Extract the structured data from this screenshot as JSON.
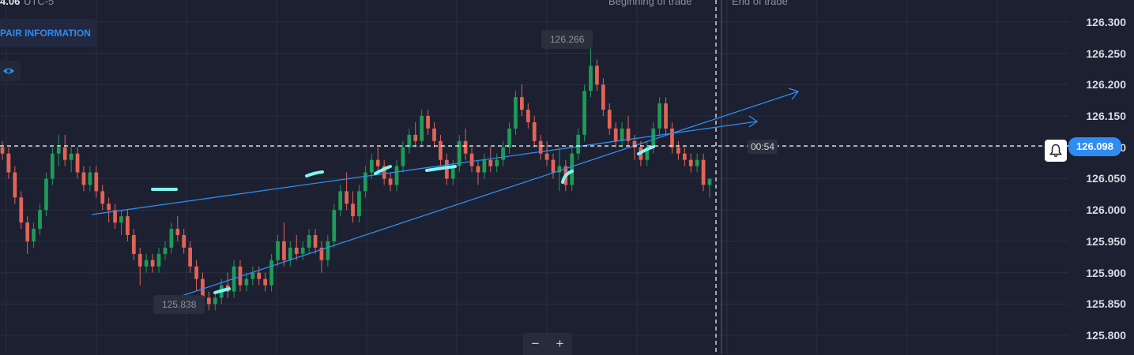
{
  "header": {
    "clock_text": "4.06",
    "timezone": "UTC-5",
    "pair_info_label": "PAIR INFORMATION",
    "eye_icon": "eye-icon",
    "beginning_label": "Beginning of trade",
    "end_label": "End of trade"
  },
  "annotations": {
    "high_label": "126.266",
    "low_label": "125.838",
    "timer_label": "00:54",
    "current_price": "126.098",
    "bell_icon": "bell-icon"
  },
  "zoom": {
    "minus": "−",
    "plus": "+"
  },
  "colors": {
    "background": "#1c2030",
    "grid": "#2a2f40",
    "bull": "#1e9b57",
    "bear": "#e26357",
    "trendline": "#2f8cf0",
    "marker": "#7ff6f0",
    "accent": "#2f8cf0"
  },
  "chart_data": {
    "type": "candlestick",
    "y_axis_ticks": [
      "126.300",
      "126.250",
      "126.200",
      "126.150",
      "126.100",
      "126.050",
      "126.000",
      "125.950",
      "125.900",
      "125.850",
      "125.800"
    ],
    "ylim": [
      125.77,
      126.335
    ],
    "current_price": 126.098,
    "high": 126.266,
    "low": 125.838,
    "candles": [
      [
        126.1,
        126.11,
        126.08,
        126.09
      ],
      [
        126.09,
        126.1,
        126.05,
        126.06
      ],
      [
        126.06,
        126.07,
        126.01,
        126.02
      ],
      [
        126.02,
        126.03,
        125.97,
        125.98
      ],
      [
        125.98,
        125.99,
        125.93,
        125.95
      ],
      [
        125.95,
        125.98,
        125.94,
        125.97
      ],
      [
        125.97,
        126.01,
        125.96,
        126.0
      ],
      [
        126.0,
        126.06,
        125.99,
        126.05
      ],
      [
        126.05,
        126.1,
        126.04,
        126.09
      ],
      [
        126.09,
        126.12,
        126.07,
        126.1
      ],
      [
        126.1,
        126.12,
        126.07,
        126.08
      ],
      [
        126.08,
        126.1,
        126.06,
        126.09
      ],
      [
        126.09,
        126.1,
        126.05,
        126.06
      ],
      [
        126.06,
        126.07,
        126.03,
        126.04
      ],
      [
        126.04,
        126.07,
        126.03,
        126.06
      ],
      [
        126.06,
        126.07,
        126.02,
        126.03
      ],
      [
        126.03,
        126.04,
        126.0,
        126.01
      ],
      [
        126.01,
        126.02,
        125.98,
        126.0
      ],
      [
        126.0,
        126.01,
        125.97,
        125.98
      ],
      [
        125.98,
        126.0,
        125.96,
        125.99
      ],
      [
        125.99,
        126.0,
        125.95,
        125.96
      ],
      [
        125.96,
        125.97,
        125.92,
        125.93
      ],
      [
        125.93,
        125.94,
        125.88,
        125.91
      ],
      [
        125.91,
        125.93,
        125.9,
        125.92
      ],
      [
        125.92,
        125.93,
        125.9,
        125.91
      ],
      [
        125.91,
        125.94,
        125.9,
        125.93
      ],
      [
        125.93,
        125.95,
        125.92,
        125.94
      ],
      [
        125.94,
        125.98,
        125.93,
        125.97
      ],
      [
        125.97,
        125.99,
        125.95,
        125.96
      ],
      [
        125.96,
        125.97,
        125.93,
        125.94
      ],
      [
        125.94,
        125.95,
        125.9,
        125.91
      ],
      [
        125.91,
        125.92,
        125.87,
        125.89
      ],
      [
        125.89,
        125.9,
        125.85,
        125.86
      ],
      [
        125.86,
        125.87,
        125.84,
        125.85
      ],
      [
        125.85,
        125.87,
        125.84,
        125.86
      ],
      [
        125.86,
        125.89,
        125.85,
        125.88
      ],
      [
        125.88,
        125.9,
        125.86,
        125.87
      ],
      [
        125.87,
        125.92,
        125.86,
        125.91
      ],
      [
        125.91,
        125.92,
        125.87,
        125.88
      ],
      [
        125.88,
        125.9,
        125.87,
        125.89
      ],
      [
        125.89,
        125.91,
        125.88,
        125.9
      ],
      [
        125.9,
        125.91,
        125.88,
        125.89
      ],
      [
        125.89,
        125.9,
        125.87,
        125.88
      ],
      [
        125.88,
        125.93,
        125.87,
        125.92
      ],
      [
        125.92,
        125.96,
        125.91,
        125.95
      ],
      [
        125.95,
        125.98,
        125.91,
        125.92
      ],
      [
        125.92,
        125.95,
        125.91,
        125.94
      ],
      [
        125.94,
        125.96,
        125.92,
        125.93
      ],
      [
        125.93,
        125.95,
        125.92,
        125.94
      ],
      [
        125.94,
        125.97,
        125.93,
        125.96
      ],
      [
        125.96,
        125.97,
        125.93,
        125.94
      ],
      [
        125.94,
        125.95,
        125.9,
        125.92
      ],
      [
        125.92,
        125.96,
        125.91,
        125.95
      ],
      [
        125.95,
        126.01,
        125.94,
        126.0
      ],
      [
        126.0,
        126.04,
        125.99,
        126.03
      ],
      [
        126.03,
        126.06,
        126.0,
        126.01
      ],
      [
        126.01,
        126.03,
        125.98,
        125.99
      ],
      [
        125.99,
        126.04,
        125.98,
        126.03
      ],
      [
        126.03,
        126.07,
        126.02,
        126.06
      ],
      [
        126.06,
        126.09,
        126.05,
        126.08
      ],
      [
        126.08,
        126.1,
        126.06,
        126.07
      ],
      [
        126.07,
        126.08,
        126.04,
        126.05
      ],
      [
        126.05,
        126.06,
        126.03,
        126.04
      ],
      [
        126.04,
        126.08,
        126.03,
        126.07
      ],
      [
        126.07,
        126.11,
        126.06,
        126.1
      ],
      [
        126.1,
        126.13,
        126.09,
        126.12
      ],
      [
        126.12,
        126.14,
        126.1,
        126.11
      ],
      [
        126.11,
        126.16,
        126.1,
        126.15
      ],
      [
        126.15,
        126.16,
        126.12,
        126.13
      ],
      [
        126.13,
        126.14,
        126.1,
        126.11
      ],
      [
        126.11,
        126.12,
        126.07,
        126.08
      ],
      [
        126.08,
        126.09,
        126.04,
        126.05
      ],
      [
        126.05,
        126.08,
        126.04,
        126.07
      ],
      [
        126.07,
        126.12,
        126.06,
        126.11
      ],
      [
        126.11,
        126.13,
        126.08,
        126.09
      ],
      [
        126.09,
        126.1,
        126.06,
        126.07
      ],
      [
        126.07,
        126.08,
        126.04,
        126.06
      ],
      [
        126.06,
        126.09,
        126.05,
        126.08
      ],
      [
        126.08,
        126.1,
        126.06,
        126.07
      ],
      [
        126.07,
        126.09,
        126.06,
        126.08
      ],
      [
        126.08,
        126.11,
        126.07,
        126.1
      ],
      [
        126.1,
        126.14,
        126.09,
        126.13
      ],
      [
        126.13,
        126.19,
        126.12,
        126.18
      ],
      [
        126.18,
        126.2,
        126.15,
        126.16
      ],
      [
        126.16,
        126.17,
        126.13,
        126.14
      ],
      [
        126.14,
        126.15,
        126.1,
        126.11
      ],
      [
        126.11,
        126.12,
        126.08,
        126.09
      ],
      [
        126.09,
        126.11,
        126.07,
        126.08
      ],
      [
        126.08,
        126.09,
        126.05,
        126.06
      ],
      [
        126.06,
        126.1,
        126.03,
        126.07
      ],
      [
        126.07,
        126.08,
        126.03,
        126.04
      ],
      [
        126.04,
        126.1,
        126.03,
        126.09
      ],
      [
        126.09,
        126.13,
        126.08,
        126.12
      ],
      [
        126.12,
        126.2,
        126.11,
        126.19
      ],
      [
        126.19,
        126.27,
        126.18,
        126.23
      ],
      [
        126.23,
        126.24,
        126.19,
        126.2
      ],
      [
        126.2,
        126.21,
        126.15,
        126.16
      ],
      [
        126.16,
        126.17,
        126.12,
        126.13
      ],
      [
        126.13,
        126.14,
        126.1,
        126.11
      ],
      [
        126.11,
        126.14,
        126.1,
        126.13
      ],
      [
        126.13,
        126.15,
        126.1,
        126.11
      ],
      [
        126.11,
        126.12,
        126.08,
        126.1
      ],
      [
        126.1,
        126.11,
        126.07,
        126.08
      ],
      [
        126.08,
        126.11,
        126.07,
        126.1
      ],
      [
        126.1,
        126.14,
        126.09,
        126.13
      ],
      [
        126.13,
        126.18,
        126.12,
        126.17
      ],
      [
        126.17,
        126.18,
        126.12,
        126.13
      ],
      [
        126.13,
        126.14,
        126.09,
        126.1
      ],
      [
        126.1,
        126.11,
        126.08,
        126.09
      ],
      [
        126.09,
        126.1,
        126.07,
        126.08
      ],
      [
        126.08,
        126.09,
        126.06,
        126.07
      ],
      [
        126.07,
        126.09,
        126.06,
        126.08
      ],
      [
        126.08,
        126.09,
        126.03,
        126.04
      ],
      [
        126.04,
        126.05,
        126.02,
        126.05
      ]
    ]
  }
}
